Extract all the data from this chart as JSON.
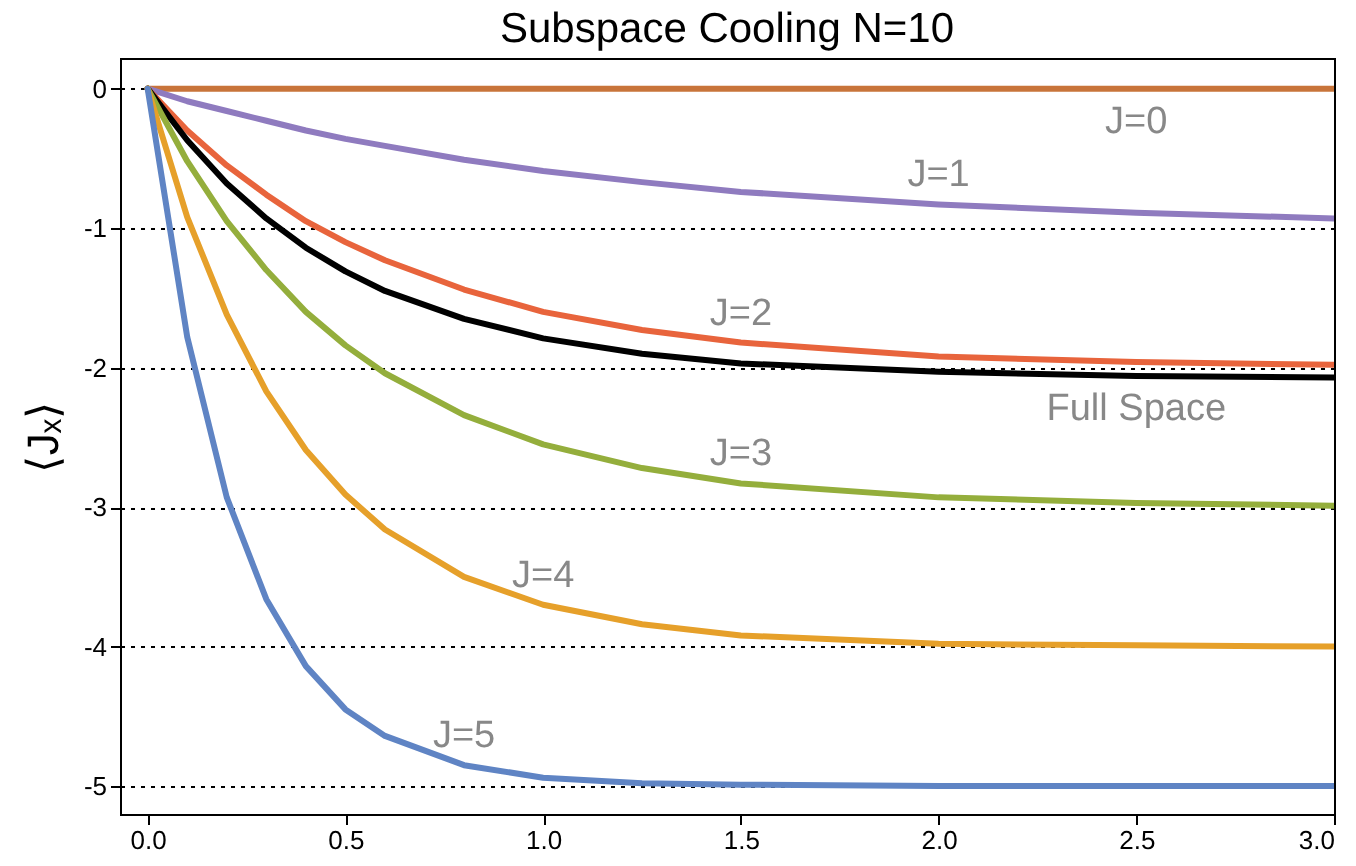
{
  "chart_data": {
    "type": "line",
    "title": "Subspace Cooling N=10",
    "ylabel": "⟨Jₓ⟩",
    "x": [
      0,
      0.1,
      0.2,
      0.3,
      0.4,
      0.5,
      0.6,
      0.8,
      1.0,
      1.25,
      1.5,
      2.0,
      2.5,
      3.0
    ],
    "series": [
      {
        "color": "#c8743a",
        "values": [
          0,
          0,
          0,
          0,
          0,
          0,
          0,
          0,
          0,
          0,
          0,
          0,
          0,
          0
        ]
      },
      {
        "color": "#8f7bbf",
        "values": [
          0,
          -0.09,
          -0.16,
          -0.23,
          -0.3,
          -0.36,
          -0.41,
          -0.51,
          -0.59,
          -0.67,
          -0.74,
          -0.83,
          -0.89,
          -0.93
        ]
      },
      {
        "color": "#e8643c",
        "values": [
          0,
          -0.3,
          -0.55,
          -0.76,
          -0.95,
          -1.1,
          -1.23,
          -1.44,
          -1.6,
          -1.73,
          -1.82,
          -1.92,
          -1.96,
          -1.98
        ]
      },
      {
        "color": "#000000",
        "values": [
          0,
          -0.37,
          -0.68,
          -0.93,
          -1.14,
          -1.31,
          -1.45,
          -1.65,
          -1.79,
          -1.9,
          -1.97,
          -2.03,
          -2.06,
          -2.07
        ]
      },
      {
        "color": "#94ae3c",
        "values": [
          0,
          -0.52,
          -0.95,
          -1.3,
          -1.6,
          -1.84,
          -2.04,
          -2.34,
          -2.55,
          -2.72,
          -2.83,
          -2.93,
          -2.97,
          -2.99
        ]
      },
      {
        "color": "#e6a02a",
        "values": [
          0,
          -0.92,
          -1.62,
          -2.17,
          -2.59,
          -2.91,
          -3.16,
          -3.5,
          -3.7,
          -3.84,
          -3.92,
          -3.98,
          -3.99,
          -4.0
        ]
      },
      {
        "color": "#5f84c4",
        "values": [
          0,
          -1.78,
          -2.93,
          -3.66,
          -4.14,
          -4.45,
          -4.64,
          -4.85,
          -4.94,
          -4.98,
          -4.99,
          -5.0,
          -5.0,
          -5.0
        ]
      }
    ],
    "annotations": [
      {
        "text": "J=0",
        "x": 2.5,
        "y": 0
      },
      {
        "text": "J=1",
        "x": 2.0,
        "y": -0.83
      },
      {
        "text": "J=2",
        "x": 1.5,
        "y": -1.82
      },
      {
        "text": "Full Space",
        "x": 2.5,
        "y": -2.06
      },
      {
        "text": "J=3",
        "x": 1.5,
        "y": -2.83
      },
      {
        "text": "J=4",
        "x": 1.0,
        "y": -3.7
      },
      {
        "text": "J=5",
        "x": 0.8,
        "y": -4.85
      }
    ],
    "xlim": [
      -0.07,
      3.0
    ],
    "ylim": [
      -5.2,
      0.22
    ],
    "xticks": [
      {
        "value": 0,
        "label": "0.0"
      },
      0.5,
      {
        "value": 1,
        "label": "1.0"
      },
      1.5,
      {
        "value": 2,
        "label": "2.0"
      },
      2.5,
      {
        "value": 3,
        "label": "3.0"
      }
    ],
    "yticks": [
      -5,
      -4,
      -3,
      -2,
      -1,
      0
    ],
    "grid": "y",
    "line_style": "solid"
  }
}
